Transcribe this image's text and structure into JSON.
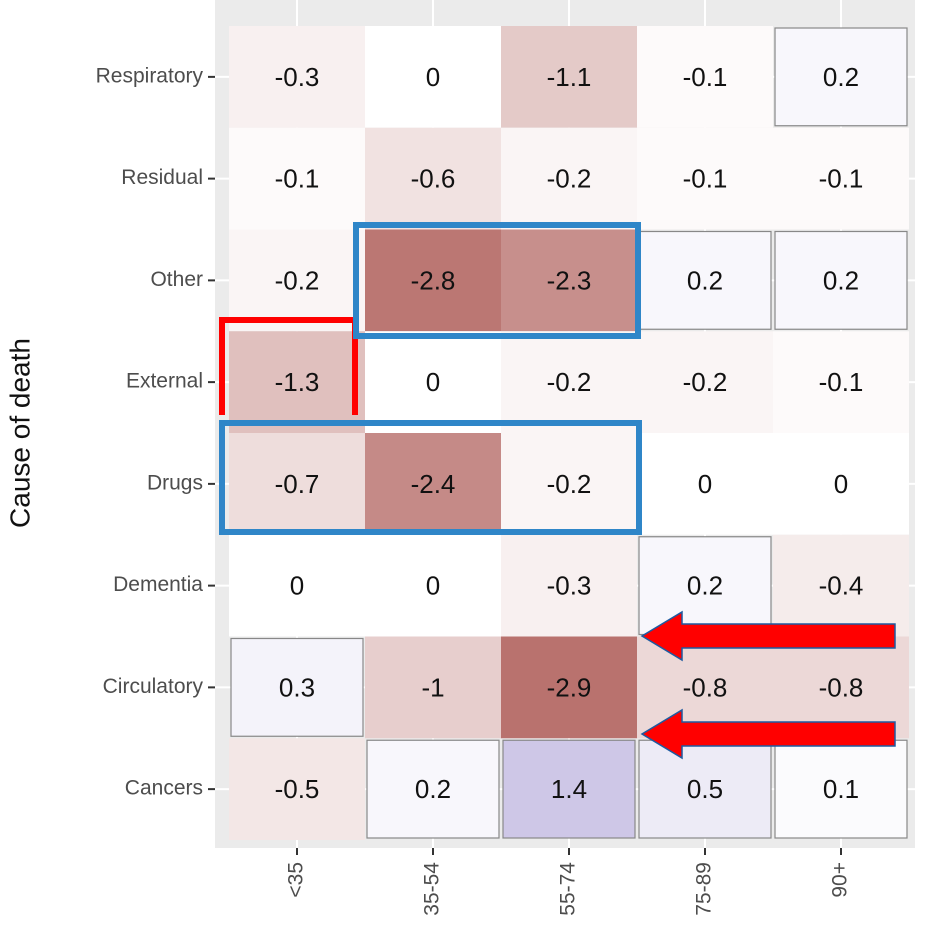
{
  "chart_data": {
    "type": "heatmap",
    "x_categories": [
      "<35",
      "35-54",
      "55-74",
      "75-89",
      "90+"
    ],
    "y_categories": [
      "Respiratory",
      "Residual",
      "Other",
      "External",
      "Drugs",
      "Dementia",
      "Circulatory",
      "Cancers"
    ],
    "values": [
      [
        -0.3,
        0,
        -1.1,
        -0.1,
        0.2
      ],
      [
        -0.1,
        -0.6,
        -0.2,
        -0.1,
        -0.1
      ],
      [
        -0.2,
        -2.8,
        -2.3,
        0.2,
        0.2
      ],
      [
        -1.3,
        0,
        -0.2,
        -0.2,
        -0.1
      ],
      [
        -0.7,
        -2.4,
        -0.2,
        0,
        0
      ],
      [
        0,
        0,
        -0.3,
        0.2,
        -0.4
      ],
      [
        0.3,
        -1,
        -2.9,
        -0.8,
        -0.8
      ],
      [
        -0.5,
        0.2,
        1.4,
        0.5,
        0.1
      ]
    ],
    "ylabel": "Cause of death",
    "low_color": "#a8504b",
    "mid_color": "#ffffff",
    "high_color": "#8070c0",
    "color_limits": [
      -3.6,
      3.6
    ],
    "grid": true
  }
}
